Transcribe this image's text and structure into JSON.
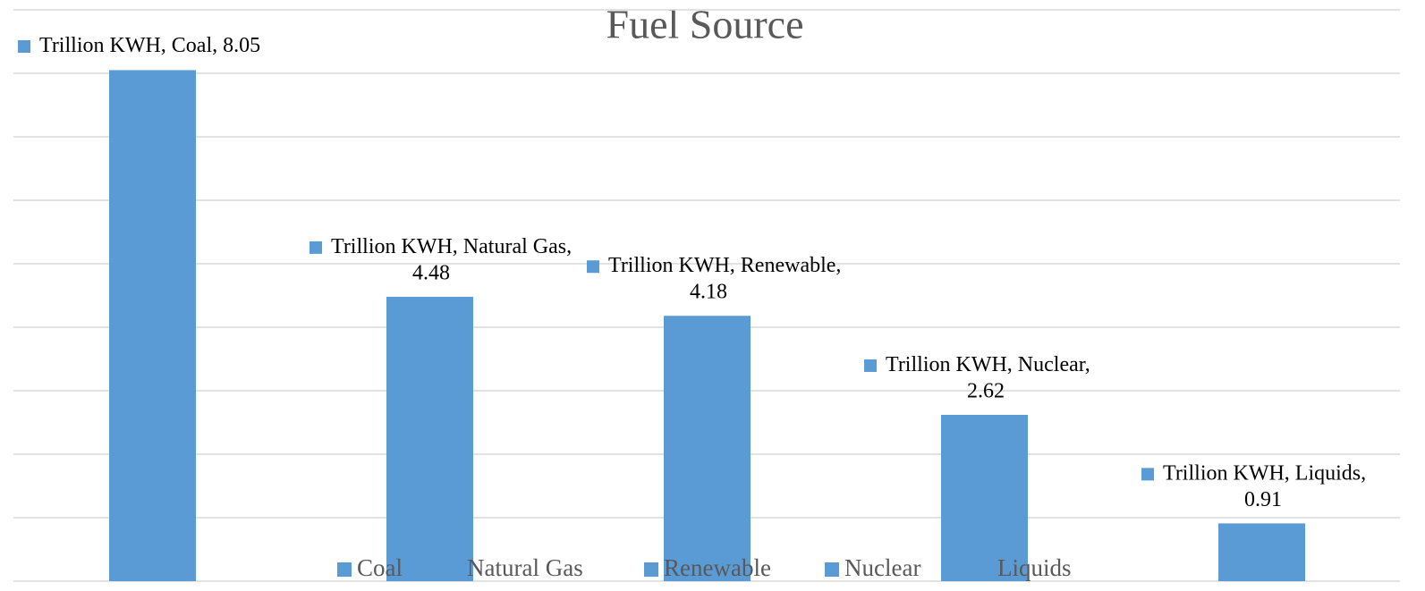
{
  "chart_data": {
    "type": "bar",
    "title": "Fuel Source",
    "categories": [
      "Coal",
      "Natural Gas",
      "Renewable",
      "Nuclear",
      "Liquids"
    ],
    "series": [
      {
        "name": "Trillion KWH",
        "color": "#5b9bd5",
        "values": [
          8.05,
          4.48,
          4.18,
          2.62,
          0.91
        ]
      }
    ],
    "ylim": [
      0,
      9
    ],
    "yticks": [
      0,
      1,
      2,
      3,
      4,
      5,
      6,
      7,
      8,
      9
    ],
    "grid": true,
    "legend": "bottom"
  }
}
